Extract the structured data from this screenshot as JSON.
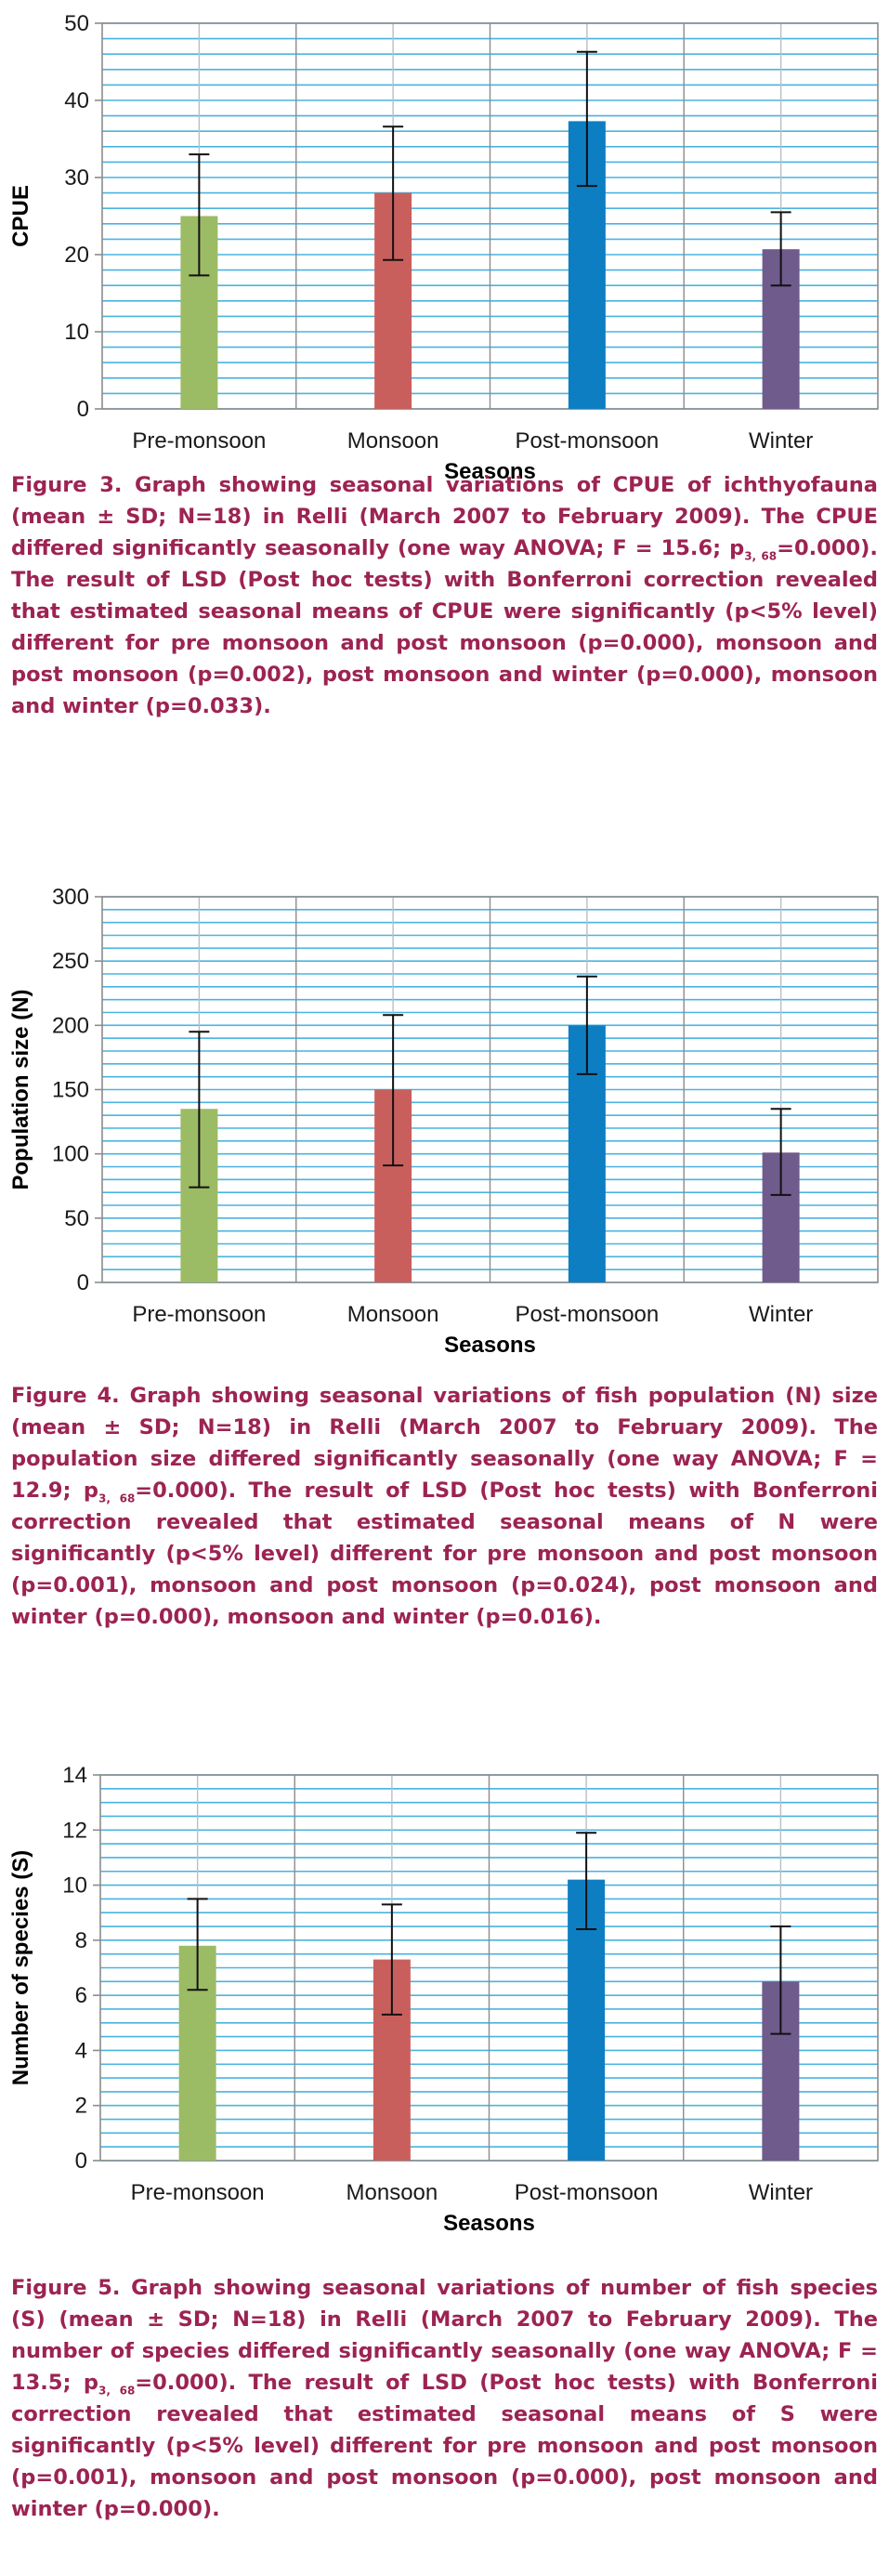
{
  "colors": {
    "grid": "#4ab3e0",
    "vgrid": "#b9bfc6",
    "axis": "#8c8c8c",
    "caption": "#9c2352",
    "bars": [
      "#9cbb65",
      "#c95f5c",
      "#0e7ec2",
      "#6f5b8c"
    ]
  },
  "chart_data": [
    {
      "type": "bar",
      "title": "",
      "xlabel": "Seasons",
      "ylabel": "CPUE",
      "categories": [
        "Pre-monsoon",
        "Monsoon",
        "Post-monsoon",
        "Winter"
      ],
      "values": [
        25,
        28,
        37.3,
        20.7
      ],
      "error_low": [
        17.3,
        19.3,
        28.9,
        16.0
      ],
      "error_high": [
        33.0,
        36.6,
        46.3,
        25.5
      ],
      "ylim": [
        0,
        50
      ],
      "yticks": [
        0,
        10,
        20,
        30,
        40,
        50
      ],
      "ytick_labels": [
        "0",
        "10",
        "20",
        "30",
        "40",
        "50"
      ],
      "grid_step": 2,
      "grid": true,
      "legend": "none"
    },
    {
      "type": "bar",
      "title": "",
      "xlabel": "Seasons",
      "ylabel": "Population size (N)",
      "categories": [
        "Pre-monsoon",
        "Monsoon",
        "Post-monsoon",
        "Winter"
      ],
      "values": [
        135,
        150,
        200,
        101
      ],
      "error_low": [
        74,
        91,
        162,
        68
      ],
      "error_high": [
        195,
        208,
        238,
        135
      ],
      "ylim": [
        0,
        300
      ],
      "yticks": [
        0,
        50,
        100,
        150,
        200,
        250,
        300
      ],
      "ytick_labels": [
        "0",
        "50",
        "100",
        "150",
        "200",
        "250",
        "300"
      ],
      "grid_step": 10,
      "grid": true,
      "legend": "none"
    },
    {
      "type": "bar",
      "title": "",
      "xlabel": "Seasons",
      "ylabel": "Number of species (S)",
      "categories": [
        "Pre-monsoon",
        "Monsoon",
        "Post-monsoon",
        "Winter"
      ],
      "values": [
        7.8,
        7.3,
        10.2,
        6.5
      ],
      "error_low": [
        6.2,
        5.3,
        8.4,
        4.6
      ],
      "error_high": [
        9.5,
        9.3,
        11.9,
        8.5
      ],
      "ylim": [
        0,
        14
      ],
      "yticks": [
        0,
        2,
        4,
        6,
        8,
        10,
        12,
        14
      ],
      "ytick_labels": [
        "0",
        "2",
        "4",
        "6",
        "8",
        "10",
        "12",
        "14"
      ],
      "grid_step": 0.5,
      "grid": true,
      "legend": "none"
    }
  ],
  "captions": [
    {
      "pre": "Figure 3. Graph showing seasonal variations of CPUE of ichthyofauna (mean ± SD; N=18) in Relli (March 2007 to February 2009). The CPUE differed significantly seasonally (one way ANOVA; F = 15.6; p",
      "sub": "3, 68",
      "post": "=0.000). The result of LSD (Post hoc tests) with Bonferroni correction revealed that estimated seasonal means of CPUE were significantly (p<5% level) different for pre monsoon and post monsoon (p=0.000), monsoon and post monsoon (p=0.002), post monsoon and winter (p=0.000), monsoon and winter (p=0.033)."
    },
    {
      "pre": "Figure 4. Graph showing seasonal variations of fish population (N) size (mean ± SD; N=18) in Relli (March 2007 to February 2009). The population size differed significantly seasonally (one way ANOVA; F = 12.9; p",
      "sub": "3, 68",
      "post": "=0.000). The result of LSD (Post hoc tests) with Bonferroni correction revealed that estimated seasonal means of N were significantly (p<5% level) different for pre monsoon and post monsoon (p=0.001), monsoon and post monsoon (p=0.024), post monsoon and winter (p=0.000), monsoon and winter (p=0.016)."
    },
    {
      "pre": "Figure 5. Graph showing seasonal variations of number of fish species (S) (mean ± SD; N=18) in Relli (March 2007 to February 2009). The number of species differed significantly seasonally (one way ANOVA; F = 13.5; p",
      "sub": "3, 68",
      "post": "=0.000). The result of LSD (Post hoc tests) with Bonferroni correction revealed that estimated seasonal means of S were significantly (p<5% level) different for pre monsoon and post monsoon (p=0.001), monsoon and post monsoon (p=0.000), post monsoon and winter (p=0.000)."
    }
  ]
}
